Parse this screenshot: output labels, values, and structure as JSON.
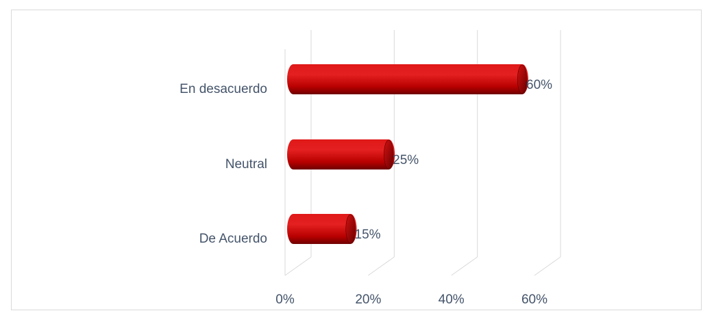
{
  "chart_data": {
    "type": "bar",
    "orientation": "horizontal",
    "style": "3d-cylinder",
    "categories": [
      "En desacuerdo",
      "Neutral",
      "De Acuerdo"
    ],
    "values": [
      60,
      25,
      15
    ],
    "data_labels": [
      "60%",
      "25%",
      "15%"
    ],
    "x_ticks": [
      "0%",
      "20%",
      "40%",
      "60%"
    ],
    "xlim": [
      0,
      60
    ],
    "grid": true,
    "legend": "none",
    "colors": {
      "bar": "#c00000",
      "bar_light": "#f03030",
      "bar_dark": "#7a0000",
      "grid": "#d9d9d9",
      "text": "#44546a"
    }
  }
}
